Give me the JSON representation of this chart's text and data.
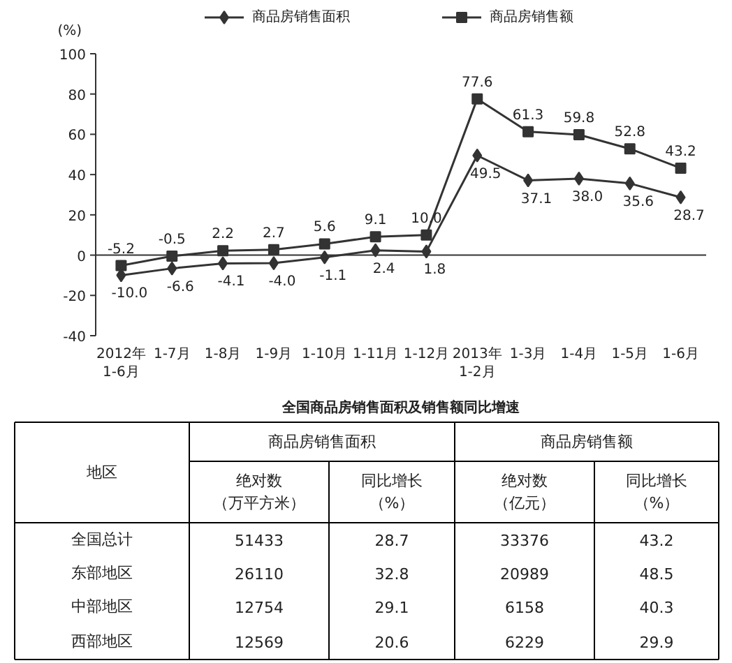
{
  "chart_data": [
    {
      "type": "line",
      "ylabel": "(%)",
      "categories": [
        "2012年1-6月",
        "1-7月",
        "1-8月",
        "1-9月",
        "1-10月",
        "1-11月",
        "1-12月",
        "2013年1-2月",
        "1-3月",
        "1-4月",
        "1-5月",
        "1-6月"
      ],
      "series": [
        {
          "name": "商品房销售面积",
          "color": "#333333",
          "marker": "diamond",
          "values": [
            -10.0,
            -6.6,
            -4.1,
            -4.0,
            -1.1,
            2.4,
            1.8,
            49.5,
            37.1,
            38.0,
            35.6,
            28.7
          ],
          "value_labels": [
            "-10.0",
            "-6.6",
            "-4.1",
            "-4.0",
            "-1.1",
            "2.4",
            "1.8",
            "49.5",
            "37.1",
            "38.0",
            "35.6",
            "28.7"
          ]
        },
        {
          "name": "商品房销售额",
          "color": "#333333",
          "marker": "square",
          "values": [
            -5.2,
            -0.5,
            2.2,
            2.7,
            5.6,
            9.1,
            10.0,
            77.6,
            61.3,
            59.8,
            52.8,
            43.2
          ],
          "value_labels": [
            "-5.2",
            "-0.5",
            "2.2",
            "2.7",
            "5.6",
            "9.1",
            "10.0",
            "77.6",
            "61.3",
            "59.8",
            "52.8",
            "43.2"
          ]
        }
      ],
      "ylim": [
        -40,
        100
      ],
      "yticks": [
        -40,
        -20,
        0,
        20,
        40,
        60,
        80,
        100
      ],
      "legend": "top",
      "line_style": "solid",
      "ref_lines": [
        {
          "axis": "y",
          "value": 0,
          "label": null,
          "color": "#333333"
        }
      ],
      "annotations": [
        "全国商品房销售面积及销售额同比增速"
      ]
    },
    {
      "type": "other",
      "annotations": [
        "地区",
        "商品房销售面积",
        "商品房销售额",
        "绝对数（万平方米）",
        "同比增长（%）",
        "绝对数（亿元）",
        "同比增长（%）",
        "全国总计",
        "51433",
        "28.7",
        "33376",
        "43.2",
        "东部地区",
        "26110",
        "32.8",
        "20989",
        "48.5",
        "中部地区",
        "12754",
        "29.1",
        "6158",
        "40.3",
        "西部地区",
        "12569",
        "20.6",
        "6229",
        "29.9"
      ]
    }
  ]
}
